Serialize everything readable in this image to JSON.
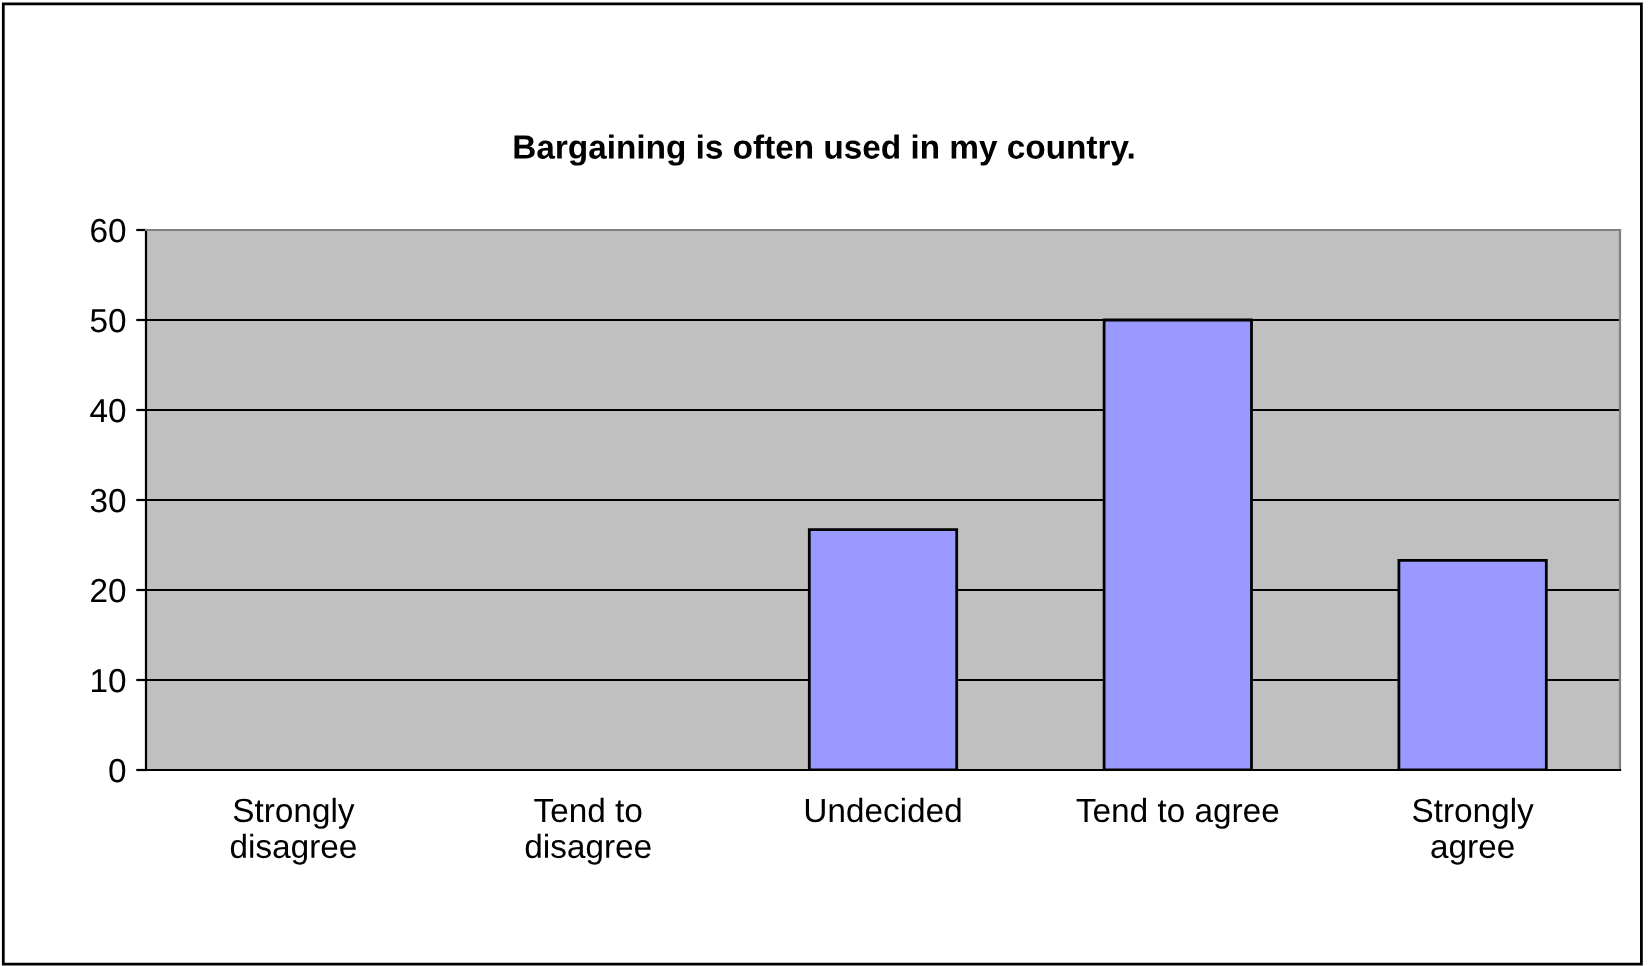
{
  "chart_data": {
    "type": "bar",
    "title": "Bargaining is often used in my country.",
    "categories": [
      "Strongly\ndisagree",
      "Tend to\ndisagree",
      "Undecided",
      "Tend to agree",
      "Strongly\nagree"
    ],
    "values": [
      0,
      0,
      26.7,
      50,
      23.3
    ],
    "color": "#9999ff",
    "ylim": [
      0,
      60
    ],
    "yticks": [
      0,
      10,
      20,
      30,
      40,
      50,
      60
    ],
    "grid": "y",
    "legend": false
  }
}
